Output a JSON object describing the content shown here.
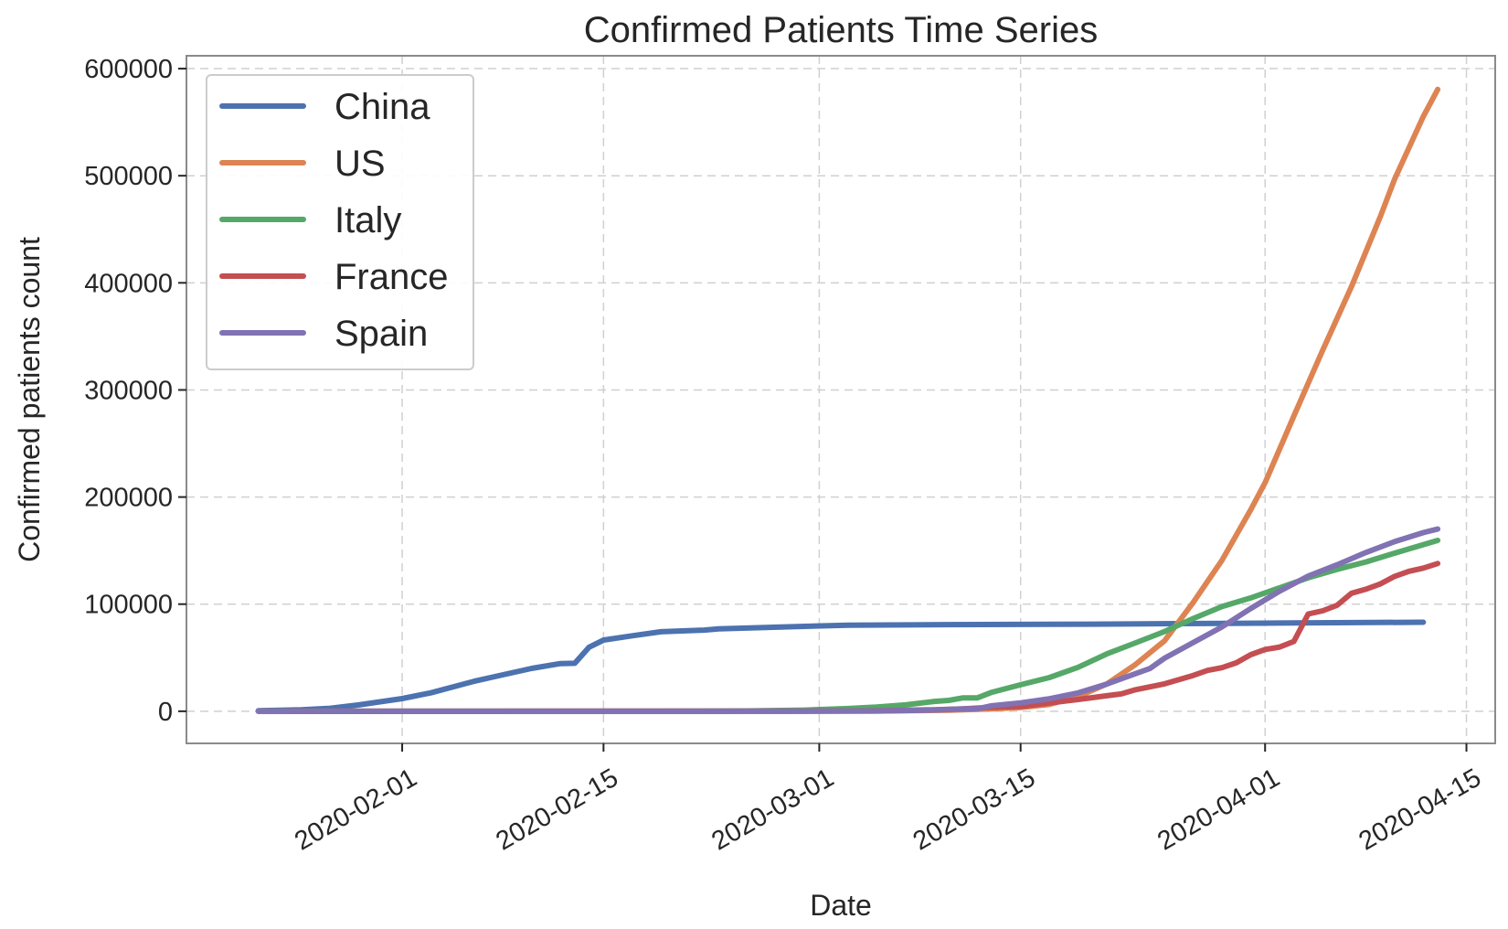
{
  "chart_data": {
    "type": "line",
    "title": "Confirmed Patients Time Series",
    "xlabel": "Date",
    "ylabel": "Confirmed patients count",
    "x_type": "date",
    "xlim": [
      "2020-01-17",
      "2020-04-17"
    ],
    "ylim": [
      -30000,
      612000
    ],
    "x_ticks": [
      "2020-02-01",
      "2020-02-15",
      "2020-03-01",
      "2020-03-15",
      "2020-04-01",
      "2020-04-15"
    ],
    "y_ticks": [
      0,
      100000,
      200000,
      300000,
      400000,
      500000,
      600000
    ],
    "grid": true,
    "legend_position": "top-left",
    "series": [
      {
        "name": "China",
        "color": "#4c72b0",
        "points": [
          [
            "2020-01-22",
            548
          ],
          [
            "2020-01-25",
            1400
          ],
          [
            "2020-01-27",
            2800
          ],
          [
            "2020-01-29",
            5900
          ],
          [
            "2020-02-01",
            11800
          ],
          [
            "2020-02-03",
            17200
          ],
          [
            "2020-02-06",
            28000
          ],
          [
            "2020-02-08",
            34000
          ],
          [
            "2020-02-10",
            40000
          ],
          [
            "2020-02-12",
            44500
          ],
          [
            "2020-02-13",
            44800
          ],
          [
            "2020-02-14",
            59800
          ],
          [
            "2020-02-15",
            66500
          ],
          [
            "2020-02-17",
            70500
          ],
          [
            "2020-02-19",
            74200
          ],
          [
            "2020-02-22",
            75800
          ],
          [
            "2020-02-23",
            77000
          ],
          [
            "2020-02-29",
            79300
          ],
          [
            "2020-03-03",
            80300
          ],
          [
            "2020-03-10",
            80900
          ],
          [
            "2020-03-20",
            81300
          ],
          [
            "2020-04-01",
            82300
          ],
          [
            "2020-04-12",
            83100
          ]
        ]
      },
      {
        "name": "US",
        "color": "#dd8452",
        "points": [
          [
            "2020-01-22",
            0
          ],
          [
            "2020-02-29",
            70
          ],
          [
            "2020-03-05",
            200
          ],
          [
            "2020-03-10",
            900
          ],
          [
            "2020-03-13",
            2200
          ],
          [
            "2020-03-15",
            3500
          ],
          [
            "2020-03-17",
            6400
          ],
          [
            "2020-03-19",
            13700
          ],
          [
            "2020-03-21",
            25500
          ],
          [
            "2020-03-23",
            43800
          ],
          [
            "2020-03-25",
            65700
          ],
          [
            "2020-03-27",
            101600
          ],
          [
            "2020-03-29",
            140900
          ],
          [
            "2020-03-31",
            188100
          ],
          [
            "2020-04-01",
            213400
          ],
          [
            "2020-04-03",
            275600
          ],
          [
            "2020-04-05",
            337000
          ],
          [
            "2020-04-07",
            396200
          ],
          [
            "2020-04-09",
            461400
          ],
          [
            "2020-04-10",
            496500
          ],
          [
            "2020-04-12",
            555300
          ],
          [
            "2020-04-13",
            580600
          ]
        ]
      },
      {
        "name": "Italy",
        "color": "#55a868",
        "points": [
          [
            "2020-01-22",
            0
          ],
          [
            "2020-02-21",
            20
          ],
          [
            "2020-02-25",
            300
          ],
          [
            "2020-02-29",
            1100
          ],
          [
            "2020-03-03",
            2500
          ],
          [
            "2020-03-05",
            3900
          ],
          [
            "2020-03-07",
            5900
          ],
          [
            "2020-03-09",
            9200
          ],
          [
            "2020-03-10",
            10100
          ],
          [
            "2020-03-11",
            12500
          ],
          [
            "2020-03-12",
            12500
          ],
          [
            "2020-03-13",
            17700
          ],
          [
            "2020-03-15",
            24700
          ],
          [
            "2020-03-17",
            31500
          ],
          [
            "2020-03-19",
            41000
          ],
          [
            "2020-03-21",
            53600
          ],
          [
            "2020-03-23",
            63900
          ],
          [
            "2020-03-25",
            74400
          ],
          [
            "2020-03-27",
            86500
          ],
          [
            "2020-03-29",
            97700
          ],
          [
            "2020-03-31",
            105800
          ],
          [
            "2020-04-02",
            115200
          ],
          [
            "2020-04-04",
            124600
          ],
          [
            "2020-04-06",
            132500
          ],
          [
            "2020-04-08",
            139400
          ],
          [
            "2020-04-10",
            147600
          ],
          [
            "2020-04-13",
            159500
          ]
        ]
      },
      {
        "name": "France",
        "color": "#c44e52",
        "points": [
          [
            "2020-01-24",
            2
          ],
          [
            "2020-02-29",
            100
          ],
          [
            "2020-03-05",
            400
          ],
          [
            "2020-03-09",
            1400
          ],
          [
            "2020-03-11",
            2300
          ],
          [
            "2020-03-13",
            3700
          ],
          [
            "2020-03-15",
            4500
          ],
          [
            "2020-03-17",
            7700
          ],
          [
            "2020-03-19",
            11000
          ],
          [
            "2020-03-21",
            14500
          ],
          [
            "2020-03-22",
            16200
          ],
          [
            "2020-03-23",
            20100
          ],
          [
            "2020-03-25",
            25600
          ],
          [
            "2020-03-27",
            33400
          ],
          [
            "2020-03-28",
            38100
          ],
          [
            "2020-03-29",
            40700
          ],
          [
            "2020-03-30",
            45200
          ],
          [
            "2020-03-31",
            52800
          ],
          [
            "2020-04-01",
            57700
          ],
          [
            "2020-04-02",
            59900
          ],
          [
            "2020-04-03",
            65200
          ],
          [
            "2020-04-04",
            90800
          ],
          [
            "2020-04-05",
            93800
          ],
          [
            "2020-04-06",
            98900
          ],
          [
            "2020-04-07",
            110100
          ],
          [
            "2020-04-08",
            113900
          ],
          [
            "2020-04-09",
            118800
          ],
          [
            "2020-04-10",
            125900
          ],
          [
            "2020-04-11",
            130700
          ],
          [
            "2020-04-12",
            133700
          ],
          [
            "2020-04-13",
            137900
          ]
        ]
      },
      {
        "name": "Spain",
        "color": "#8172b3",
        "points": [
          [
            "2020-01-22",
            0
          ],
          [
            "2020-02-29",
            45
          ],
          [
            "2020-03-05",
            260
          ],
          [
            "2020-03-09",
            1200
          ],
          [
            "2020-03-11",
            2300
          ],
          [
            "2020-03-12",
            2300
          ],
          [
            "2020-03-13",
            5200
          ],
          [
            "2020-03-15",
            7800
          ],
          [
            "2020-03-17",
            11700
          ],
          [
            "2020-03-19",
            17100
          ],
          [
            "2020-03-21",
            25400
          ],
          [
            "2020-03-23",
            35100
          ],
          [
            "2020-03-24",
            39900
          ],
          [
            "2020-03-25",
            49500
          ],
          [
            "2020-03-27",
            64100
          ],
          [
            "2020-03-29",
            78800
          ],
          [
            "2020-03-31",
            95900
          ],
          [
            "2020-04-02",
            112100
          ],
          [
            "2020-04-04",
            126200
          ],
          [
            "2020-04-06",
            136700
          ],
          [
            "2020-04-08",
            148200
          ],
          [
            "2020-04-10",
            158300
          ],
          [
            "2020-04-12",
            166800
          ],
          [
            "2020-04-13",
            170100
          ]
        ]
      }
    ]
  }
}
